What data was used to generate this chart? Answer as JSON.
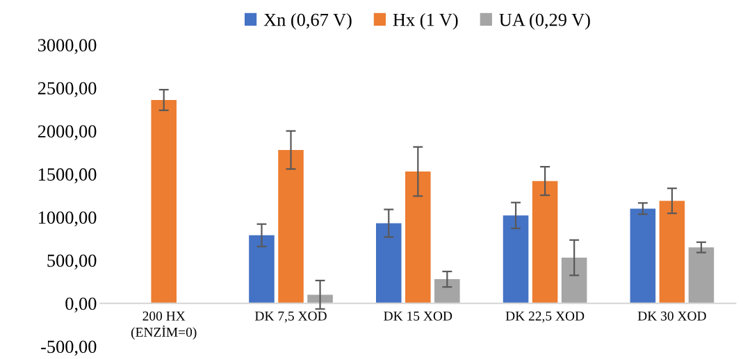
{
  "chart_data": {
    "type": "bar",
    "categories": [
      "200 HX\n(ENZİM=0)",
      "DK 7,5 XOD",
      "DK 15 XOD",
      "DK 22,5 XOD",
      "DK 30 XOD"
    ],
    "series": [
      {
        "name": "Xn (0,67 V)",
        "color": "#4472c4",
        "values": [
          0,
          790,
          930,
          1020,
          1100
        ],
        "errors": [
          null,
          130,
          160,
          150,
          65
        ]
      },
      {
        "name": "Hx (1 V)",
        "color": "#ed7d31",
        "values": [
          2360,
          1780,
          1530,
          1420,
          1190
        ],
        "errors": [
          120,
          220,
          285,
          165,
          145
        ]
      },
      {
        "name": "UA (0,29 V)",
        "color": "#a5a5a5",
        "values": [
          0,
          100,
          280,
          530,
          650
        ],
        "errors": [
          null,
          165,
          90,
          205,
          60
        ]
      }
    ],
    "ylim": [
      -500,
      3000
    ],
    "yticks": [
      {
        "value": -500,
        "label": "-500,00"
      },
      {
        "value": 0,
        "label": "0,00"
      },
      {
        "value": 500,
        "label": "500,00"
      },
      {
        "value": 1000,
        "label": "1000,00"
      },
      {
        "value": 1500,
        "label": "1500,00"
      },
      {
        "value": 2000,
        "label": "2000,00"
      },
      {
        "value": 2500,
        "label": "2500,00"
      },
      {
        "value": 3000,
        "label": "3000,00"
      }
    ],
    "grid": false,
    "legend": "top"
  }
}
